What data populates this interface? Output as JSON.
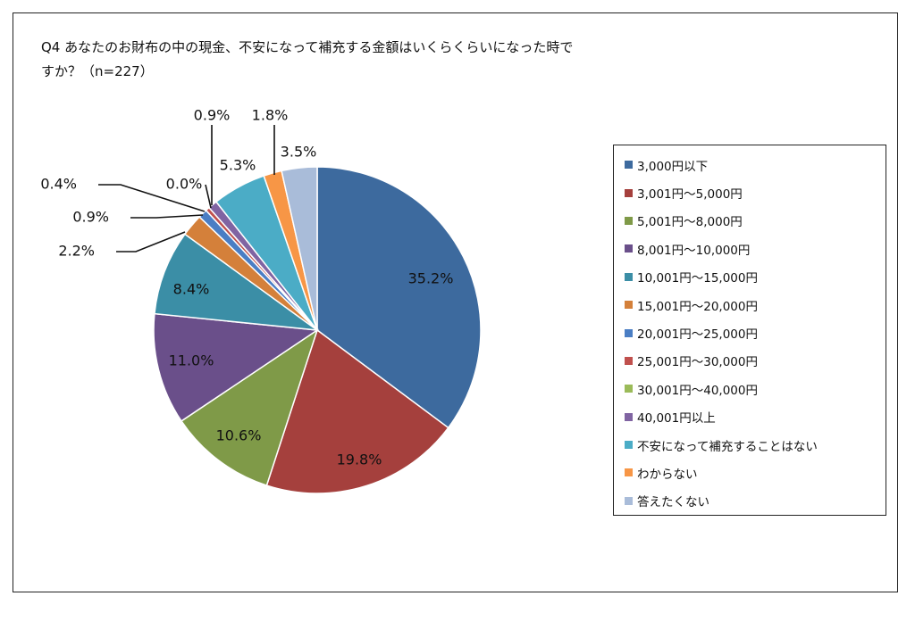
{
  "chart_data": {
    "type": "pie",
    "title": "Q4 あなたのお財布の中の現金、不安になって補充する金額はいくらくらいになった時ですか？（n=227）",
    "title_lines": [
      "Q4 あなたのお財布の中の現金、不安になって補充する金額はいくらくらいになった時で",
      "すか？（n=227）"
    ],
    "legend_position": "right",
    "categories": [
      "3,000円以下",
      "3,001円～5,000円",
      "5,001円～8,000円",
      "8,001円～10,000円",
      "10,001円～15,000円",
      "15,001円～20,000円",
      "20,001円～25,000円",
      "25,001円～30,000円",
      "30,001円～40,000円",
      "40,001円以上",
      "不安になって補充することはない",
      "わからない",
      "答えたくない"
    ],
    "values": [
      35.2,
      19.8,
      10.6,
      11.0,
      8.4,
      2.2,
      0.9,
      0.4,
      0.0,
      0.9,
      5.3,
      1.8,
      3.5
    ],
    "labels": [
      "35.2%",
      "19.8%",
      "10.6%",
      "11.0%",
      "8.4%",
      "2.2%",
      "0.9%",
      "0.4%",
      "0.0%",
      "0.9%",
      "5.3%",
      "1.8%",
      "3.5%"
    ],
    "colors": [
      "#3d6a9e",
      "#a5403d",
      "#7f9a48",
      "#6a4f8a",
      "#3b8ea6",
      "#d4803a",
      "#4a7ec4",
      "#c0504d",
      "#9bbb59",
      "#8064a2",
      "#4bacc6",
      "#f79646",
      "#a9bcd9"
    ]
  }
}
